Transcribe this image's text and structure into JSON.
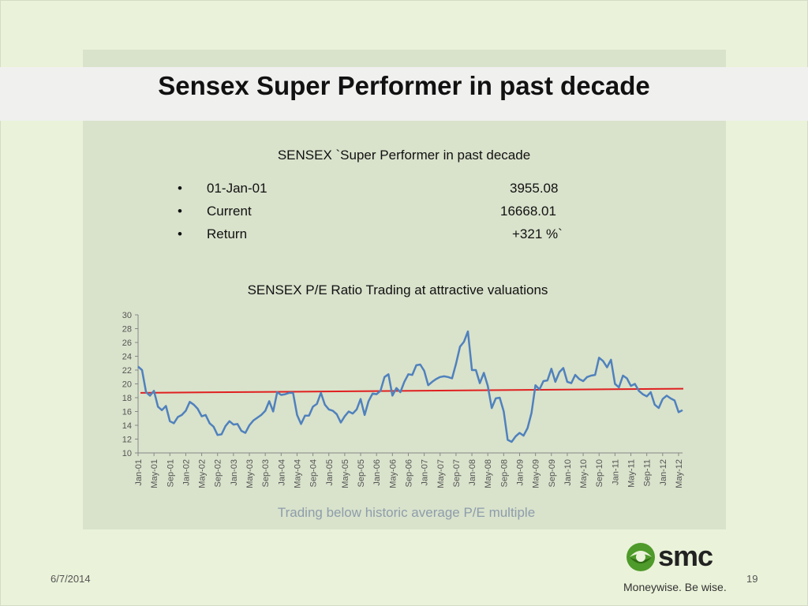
{
  "slide": {
    "title": "Sensex Super Performer in past decade",
    "subtitle": "SENSEX `Super Performer in past decade",
    "stats": [
      {
        "bullet": "•",
        "label": "01-Jan-01",
        "value": "3955.08"
      },
      {
        "bullet": "•",
        "label": "Current",
        "value": "16668.01"
      },
      {
        "bullet": "•",
        "label": "Return",
        "value": "+321 %`"
      }
    ],
    "chart_title": "SENSEX P/E Ratio Trading at attractive valuations",
    "caption": "Trading below historic average P/E multiple",
    "footer": {
      "date": "6/7/2014",
      "page": "19"
    },
    "logo": {
      "name": "smc",
      "tagline": "Moneywise. Be wise."
    }
  },
  "colors": {
    "series": "#4f81bd",
    "average_line": "#e02020",
    "axis": "#888888",
    "caption": "#8d9dab"
  },
  "chart_data": {
    "type": "line",
    "title": "SENSEX P/E Ratio Trading at attractive valuations",
    "xlabel": "",
    "ylabel": "",
    "ylim": [
      10,
      30
    ],
    "yticks": [
      10,
      12,
      14,
      16,
      18,
      20,
      22,
      24,
      26,
      28,
      30
    ],
    "x_start": "Jan-01",
    "x_tick_labels": [
      "Jan-01",
      "May-01",
      "Sep-01",
      "Jan-02",
      "May-02",
      "Sep-02",
      "Jan-03",
      "May-03",
      "Sep-03",
      "Jan-04",
      "May-04",
      "Sep-04",
      "Jan-05",
      "May-05",
      "Sep-05",
      "Jan-06",
      "May-06",
      "Sep-06",
      "Jan-07",
      "May-07",
      "Sep-07",
      "Jan-08",
      "May-08",
      "Sep-08",
      "Jan-09",
      "May-09",
      "Sep-09",
      "Jan-10",
      "May-10",
      "Sep-10",
      "Jan-11",
      "May-11",
      "Sep-11",
      "Jan-12",
      "May-12"
    ],
    "grid": false,
    "legend": "none",
    "series": [
      {
        "values": [
          22.5,
          22.0,
          18.8,
          18.3,
          19.0,
          16.7,
          16.2,
          16.8,
          14.6,
          14.3,
          15.2,
          15.5,
          16.1,
          17.4,
          17.0,
          16.4,
          15.3,
          15.5,
          14.3,
          13.8,
          12.6,
          12.7,
          13.9,
          14.6,
          14.1,
          14.2,
          13.2,
          12.9,
          14.0,
          14.7,
          15.1,
          15.5,
          16.1,
          17.5,
          16.0,
          18.8,
          18.4,
          18.5,
          18.7,
          18.7,
          15.5,
          14.2,
          15.4,
          15.4,
          16.7,
          17.1,
          18.7,
          17.0,
          16.3,
          16.1,
          15.6,
          14.4,
          15.3,
          16.0,
          15.7,
          16.3,
          17.8,
          15.5,
          17.5,
          18.6,
          18.5,
          19.0,
          21.0,
          21.4,
          18.3,
          19.4,
          18.8,
          20.3,
          21.4,
          21.3,
          22.7,
          22.8,
          21.9,
          19.8,
          20.3,
          20.7,
          21.0,
          21.1,
          21.0,
          20.8,
          22.9,
          25.4,
          26.1,
          27.6,
          22.0,
          22.0,
          20.1,
          21.6,
          19.7,
          16.5,
          17.9,
          18.0,
          16.0,
          11.9,
          11.6,
          12.4,
          12.9,
          12.5,
          13.6,
          15.8,
          19.8,
          19.2,
          20.4,
          20.5,
          22.2,
          20.3,
          21.7,
          22.3,
          20.3,
          20.1,
          21.3,
          20.7,
          20.4,
          21.0,
          21.2,
          21.3,
          23.8,
          23.3,
          22.4,
          23.5,
          20.0,
          19.5,
          21.2,
          20.8,
          19.7,
          20.0,
          19.0,
          18.5,
          18.2,
          18.8,
          17.0,
          16.5,
          17.8,
          18.3,
          17.9,
          17.6,
          15.9,
          16.2
        ]
      }
    ],
    "average_line": {
      "start": 18.7,
      "end": 19.3
    }
  }
}
